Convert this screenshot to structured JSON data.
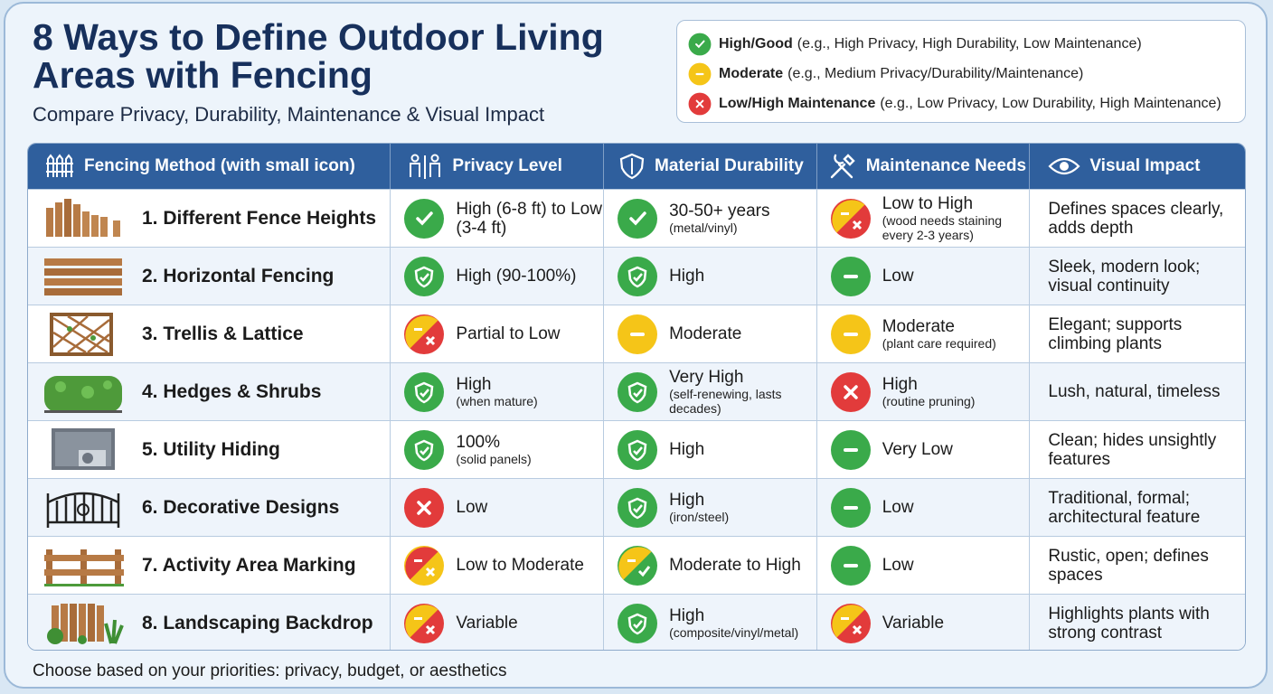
{
  "header": {
    "title": "8 Ways to Define Outdoor Living Areas with Fencing",
    "subtitle": "Compare Privacy, Durability, Maintenance & Visual Impact"
  },
  "legend": [
    {
      "label": "High/Good",
      "detail": "(e.g., High Privacy, High Durability, Low Maintenance)"
    },
    {
      "label": "Moderate",
      "detail": "(e.g., Medium Privacy/Durability/Maintenance)"
    },
    {
      "label": "Low/High Maintenance",
      "detail": "(e.g., Low Privacy, Low Durability, High Maintenance)"
    }
  ],
  "table": {
    "columns": [
      "Fencing Method (with small icon)",
      "Privacy Level",
      "Material Durability",
      "Maintenance Needs",
      "Visual Impact"
    ],
    "rows": [
      {
        "method": "1. Different Fence Heights",
        "privacy": {
          "text": "High (6-8 ft) to Low (3-4 ft)"
        },
        "durability": {
          "text": "30-50+ years",
          "note": "(metal/vinyl)"
        },
        "maintenance": {
          "text": "Low to High",
          "note": "(wood needs staining every 2-3 years)"
        },
        "visual": "Defines spaces clearly, adds depth"
      },
      {
        "method": "2. Horizontal Fencing",
        "privacy": {
          "text": "High (90-100%)"
        },
        "durability": {
          "text": "High"
        },
        "maintenance": {
          "text": "Low"
        },
        "visual": "Sleek, modern look; visual continuity"
      },
      {
        "method": "3. Trellis & Lattice",
        "privacy": {
          "text": "Partial to Low"
        },
        "durability": {
          "text": "Moderate"
        },
        "maintenance": {
          "text": "Moderate",
          "note": "(plant care required)"
        },
        "visual": "Elegant; supports climbing plants"
      },
      {
        "method": "4. Hedges & Shrubs",
        "privacy": {
          "text": "High",
          "note": "(when mature)"
        },
        "durability": {
          "text": "Very High",
          "note": "(self-renewing, lasts decades)"
        },
        "maintenance": {
          "text": "High",
          "note": "(routine pruning)"
        },
        "visual": "Lush, natural, timeless"
      },
      {
        "method": "5. Utility Hiding",
        "privacy": {
          "text": "100%",
          "note": "(solid panels)"
        },
        "durability": {
          "text": "High"
        },
        "maintenance": {
          "text": "Very Low"
        },
        "visual": "Clean; hides unsightly features"
      },
      {
        "method": "6. Decorative Designs",
        "privacy": {
          "text": "Low"
        },
        "durability": {
          "text": "High",
          "note": "(iron/steel)"
        },
        "maintenance": {
          "text": "Low"
        },
        "visual": "Traditional, formal; architectural feature"
      },
      {
        "method": "7. Activity Area Marking",
        "privacy": {
          "text": "Low to Moderate"
        },
        "durability": {
          "text": "Moderate to High"
        },
        "maintenance": {
          "text": "Low"
        },
        "visual": "Rustic, open; defines spaces"
      },
      {
        "method": "8. Landscaping Backdrop",
        "privacy": {
          "text": "Variable"
        },
        "durability": {
          "text": "High",
          "note": "(composite/vinyl/metal)"
        },
        "maintenance": {
          "text": "Variable"
        },
        "visual": "Highlights plants with strong contrast"
      }
    ]
  },
  "footer": "Choose based on your priorities: privacy, budget, or aesthetics"
}
